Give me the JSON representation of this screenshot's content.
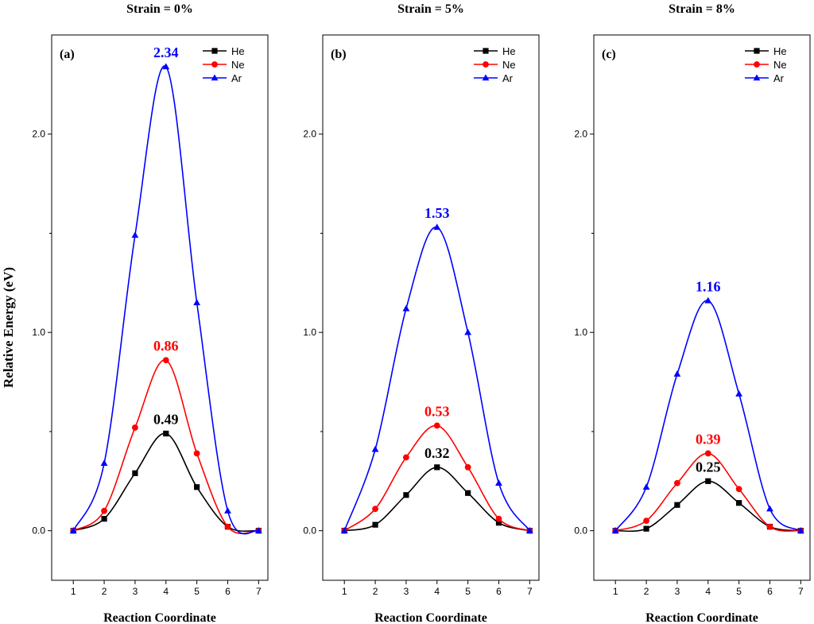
{
  "ylabel": "Relative Energy (eV)",
  "chart_data": [
    {
      "type": "line",
      "panel_label": "(a)",
      "title": "Strain = 0%",
      "xlabel": "Reaction Coordinate",
      "ylabel": "Relative Energy (eV)",
      "xlim": [
        0.3,
        7.3
      ],
      "ylim": [
        -0.25,
        2.5
      ],
      "x_ticks": [
        "1",
        "2",
        "3",
        "4",
        "5",
        "6",
        "7"
      ],
      "y_ticks": [
        "0.0",
        "1.0",
        "2.0"
      ],
      "legend_position": "top-right",
      "x": [
        1,
        2,
        3,
        4,
        5,
        6,
        7
      ],
      "series": [
        {
          "name": "He",
          "color": "#000000",
          "marker": "square",
          "values": [
            0.0,
            0.06,
            0.29,
            0.49,
            0.22,
            0.02,
            0.0
          ]
        },
        {
          "name": "Ne",
          "color": "#ff0000",
          "marker": "circle",
          "values": [
            0.0,
            0.1,
            0.52,
            0.86,
            0.39,
            0.02,
            0.0
          ]
        },
        {
          "name": "Ar",
          "color": "#0000ff",
          "marker": "triangle",
          "values": [
            0.0,
            0.34,
            1.49,
            2.34,
            1.15,
            0.1,
            0.0
          ]
        }
      ],
      "annotations": [
        {
          "text": "2.34",
          "series": "Ar",
          "color": "#0000ff"
        },
        {
          "text": "0.86",
          "series": "Ne",
          "color": "#ff0000"
        },
        {
          "text": "0.49",
          "series": "He",
          "color": "#000000"
        }
      ]
    },
    {
      "type": "line",
      "panel_label": "(b)",
      "title": "Strain = 5%",
      "xlabel": "Reaction Coordinate",
      "ylabel": "",
      "xlim": [
        0.3,
        7.3
      ],
      "ylim": [
        -0.25,
        2.5
      ],
      "x_ticks": [
        "1",
        "2",
        "3",
        "4",
        "5",
        "6",
        "7"
      ],
      "y_ticks": [
        "0.0",
        "1.0",
        "2.0"
      ],
      "legend_position": "top-right",
      "x": [
        1,
        2,
        3,
        4,
        5,
        6,
        7
      ],
      "series": [
        {
          "name": "He",
          "color": "#000000",
          "marker": "square",
          "values": [
            0.0,
            0.03,
            0.18,
            0.32,
            0.19,
            0.04,
            0.0
          ]
        },
        {
          "name": "Ne",
          "color": "#ff0000",
          "marker": "circle",
          "values": [
            0.0,
            0.11,
            0.37,
            0.53,
            0.32,
            0.06,
            0.0
          ]
        },
        {
          "name": "Ar",
          "color": "#0000ff",
          "marker": "triangle",
          "values": [
            0.0,
            0.41,
            1.12,
            1.53,
            1.0,
            0.24,
            0.0
          ]
        }
      ],
      "annotations": [
        {
          "text": "1.53",
          "series": "Ar",
          "color": "#0000ff"
        },
        {
          "text": "0.53",
          "series": "Ne",
          "color": "#ff0000"
        },
        {
          "text": "0.32",
          "series": "He",
          "color": "#000000"
        }
      ]
    },
    {
      "type": "line",
      "panel_label": "(c)",
      "title": "Strain = 8%",
      "xlabel": "Reaction Coordinate",
      "ylabel": "",
      "xlim": [
        0.3,
        7.3
      ],
      "ylim": [
        -0.25,
        2.5
      ],
      "x_ticks": [
        "1",
        "2",
        "3",
        "4",
        "5",
        "6",
        "7"
      ],
      "y_ticks": [
        "0.0",
        "1.0",
        "2.0"
      ],
      "legend_position": "top-right",
      "x": [
        1,
        2,
        3,
        4,
        5,
        6,
        7
      ],
      "series": [
        {
          "name": "He",
          "color": "#000000",
          "marker": "square",
          "values": [
            0.0,
            0.01,
            0.13,
            0.25,
            0.14,
            0.02,
            0.0
          ]
        },
        {
          "name": "Ne",
          "color": "#ff0000",
          "marker": "circle",
          "values": [
            0.0,
            0.05,
            0.24,
            0.39,
            0.21,
            0.02,
            0.0
          ]
        },
        {
          "name": "Ar",
          "color": "#0000ff",
          "marker": "triangle",
          "values": [
            0.0,
            0.22,
            0.79,
            1.16,
            0.69,
            0.11,
            0.0
          ]
        }
      ],
      "annotations": [
        {
          "text": "1.16",
          "series": "Ar",
          "color": "#0000ff"
        },
        {
          "text": "0.39",
          "series": "Ne",
          "color": "#ff0000"
        },
        {
          "text": "0.25",
          "series": "He",
          "color": "#000000"
        }
      ]
    }
  ]
}
